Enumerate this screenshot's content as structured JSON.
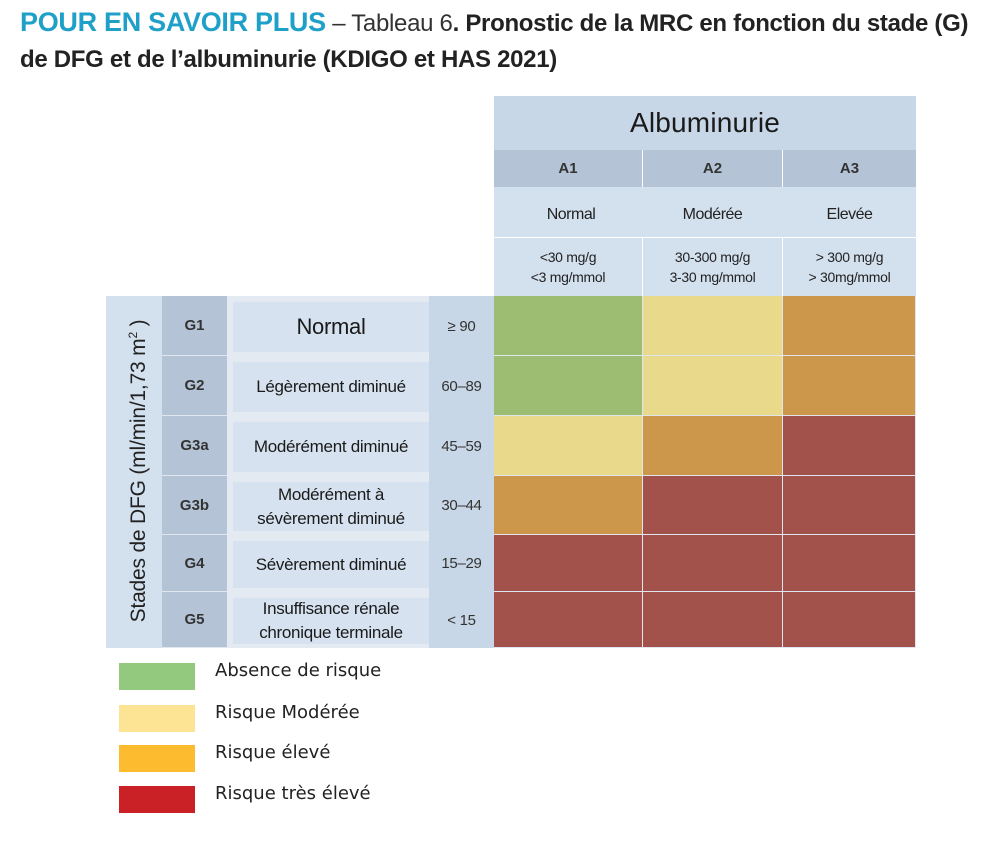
{
  "title": {
    "prefix": "POUR EN SAVOIR PLUS",
    "separator": " – Tableau 6",
    "bold_text": ". Pronostic de la MRC en fonction du stade (G) de DFG et de l’albuminurie (KDIGO et HAS 2021)"
  },
  "albuminuria": {
    "header": "Albuminurie",
    "columns": [
      {
        "code": "A1",
        "label": "Normal",
        "range_line1": "<30 mg/g",
        "range_line2": "<3 mg/mmol"
      },
      {
        "code": "A2",
        "label": "Modérée",
        "range_line1": "30-300 mg/g",
        "range_line2": "3-30 mg/mmol"
      },
      {
        "code": "A3",
        "label": "Elevée",
        "range_line1": "> 300 mg/g",
        "range_line2": "> 30mg/mmol"
      }
    ]
  },
  "gfr": {
    "axis_label_main": "Stades de DFG (ml/min/1,73 m",
    "axis_label_sup": "2",
    "axis_label_end": " )",
    "rows": [
      {
        "code": "G1",
        "label_line1": "Normal",
        "label_line2": "",
        "range": "≥ 90"
      },
      {
        "code": "G2",
        "label_line1": "Légèrement diminué",
        "label_line2": "",
        "range": "60–89"
      },
      {
        "code": "G3a",
        "label_line1": "Modérément diminué",
        "label_line2": "",
        "range": "45–59"
      },
      {
        "code": "G3b",
        "label_line1": "Modérément à",
        "label_line2": "sévèrement diminué",
        "range": "30–44"
      },
      {
        "code": "G4",
        "label_line1": "Sévèrement diminué",
        "label_line2": "",
        "range": "15–29"
      },
      {
        "code": "G5",
        "label_line1": "Insuffisance rénale",
        "label_line2": "chronique terminale",
        "range": "< 15"
      }
    ]
  },
  "risk_matrix": [
    [
      "low",
      "moderate",
      "high"
    ],
    [
      "low",
      "moderate",
      "high"
    ],
    [
      "moderate",
      "high",
      "very_high"
    ],
    [
      "high",
      "very_high",
      "very_high"
    ],
    [
      "very_high",
      "very_high",
      "very_high"
    ],
    [
      "very_high",
      "very_high",
      "very_high"
    ]
  ],
  "cell_colors": {
    "low": "#9dbd73",
    "moderate": "#e9d98a",
    "high": "#cc974b",
    "very_high": "#a3524b"
  },
  "legend": [
    {
      "label": "Absence de risque",
      "color": "#93c97f"
    },
    {
      "label": "Risque Modérée",
      "color": "#fde394"
    },
    {
      "label": "Risque élevé",
      "color": "#fdbb2f"
    },
    {
      "label": "Risque très élevé",
      "color": "#c92125"
    }
  ]
}
